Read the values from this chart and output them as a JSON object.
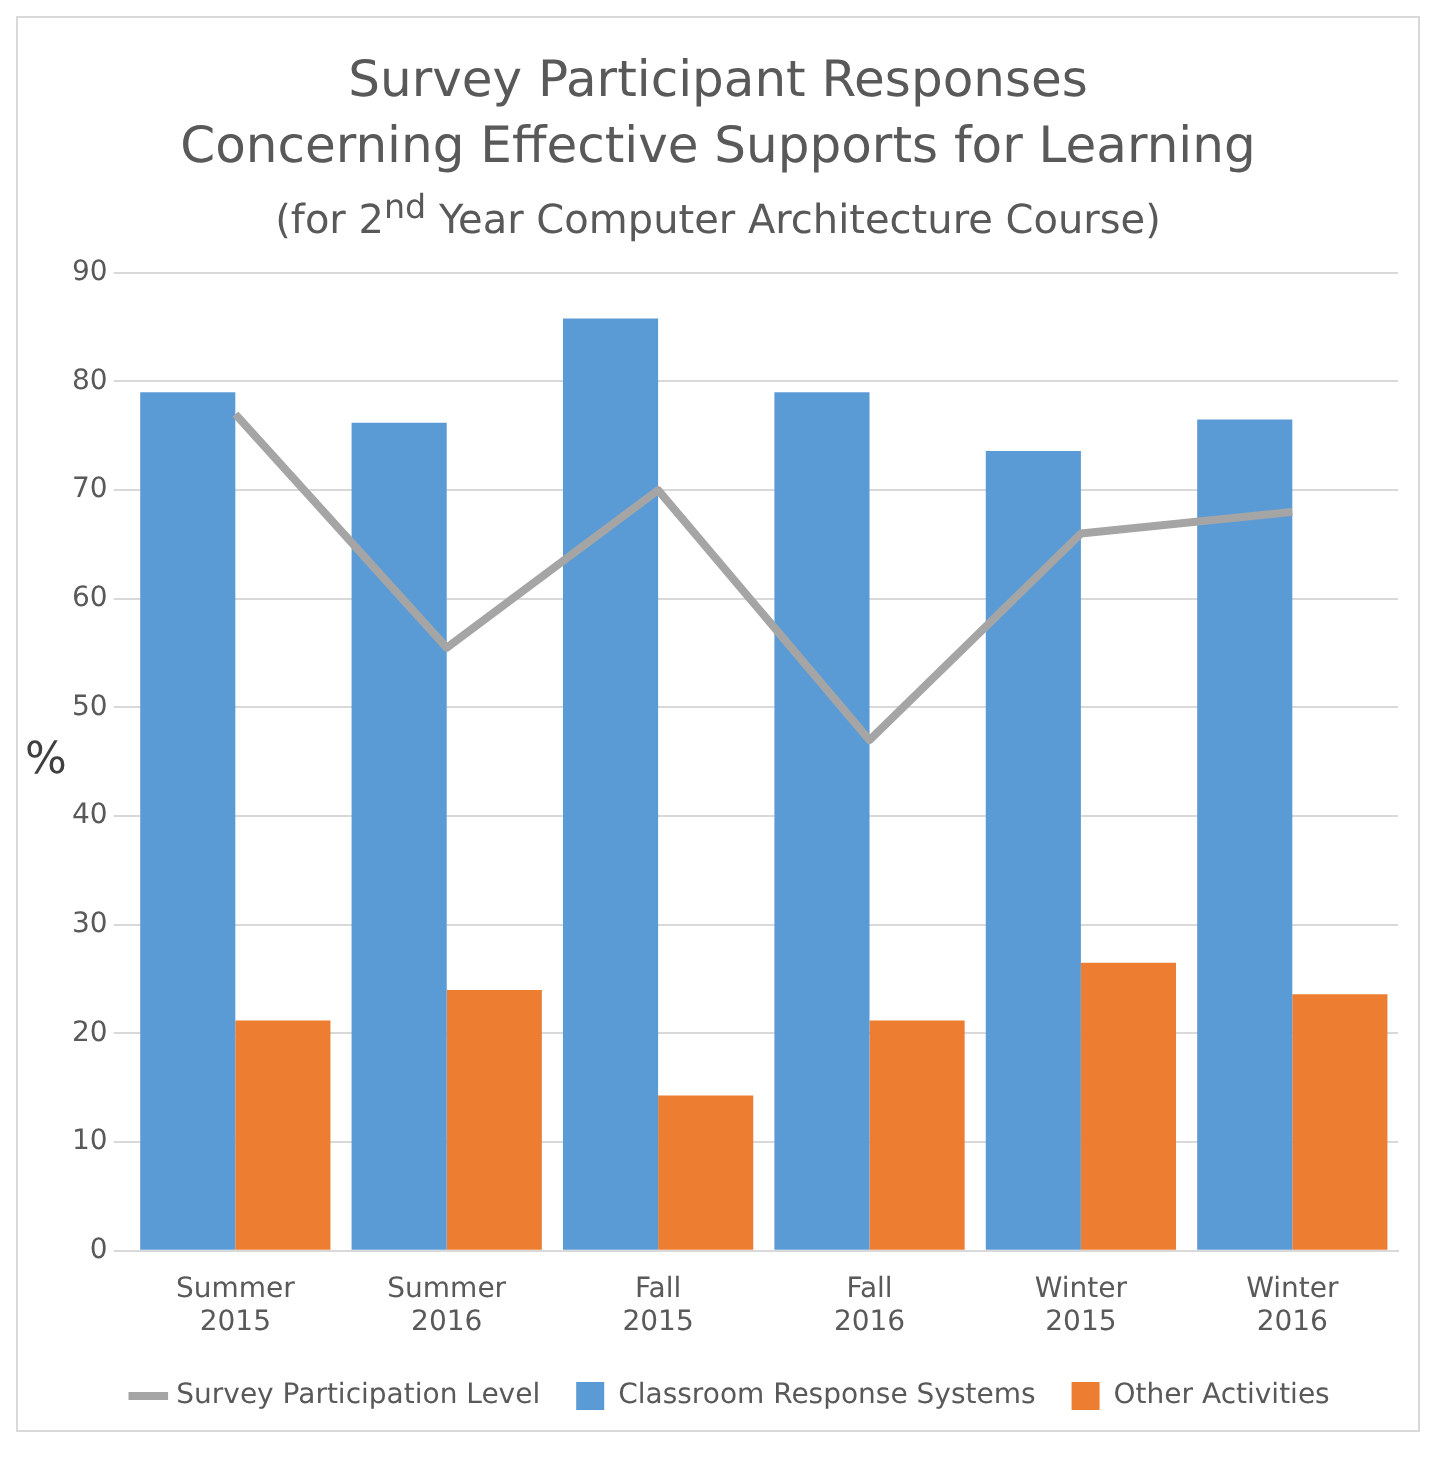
{
  "chart_data": {
    "type": "bar",
    "title": "Survey Participant Responses\nConcerning Effective Supports for Learning",
    "subtitle": "(for 2$^{nd}$ Year Computer Architecture Course)",
    "ylabel": "%",
    "categories": [
      "Summer\n2015",
      "Summer\n2016",
      "Fall\n2015",
      "Fall\n2016",
      "Winter\n2015",
      "Winter\n2016"
    ],
    "series": [
      {
        "name": "Classroom Response Systems",
        "color": "#5b9bd5",
        "values": [
          79,
          76.2,
          85.8,
          79,
          73.6,
          76.5
        ]
      },
      {
        "name": "Other Activities",
        "color": "#ed7d31",
        "values": [
          21.2,
          24,
          14.3,
          21.2,
          26.5,
          23.6
        ]
      },
      {
        "name": "Survey Participation Level",
        "type": "line",
        "color": "#a5a5a5",
        "values": [
          77,
          55.5,
          70,
          47,
          66,
          68
        ]
      }
    ],
    "ylim": [
      0,
      90
    ],
    "yticks": [
      0,
      10,
      20,
      30,
      40,
      50,
      60,
      70,
      80,
      90
    ],
    "grid": "y",
    "legend": "bottom",
    "marker": "none"
  }
}
